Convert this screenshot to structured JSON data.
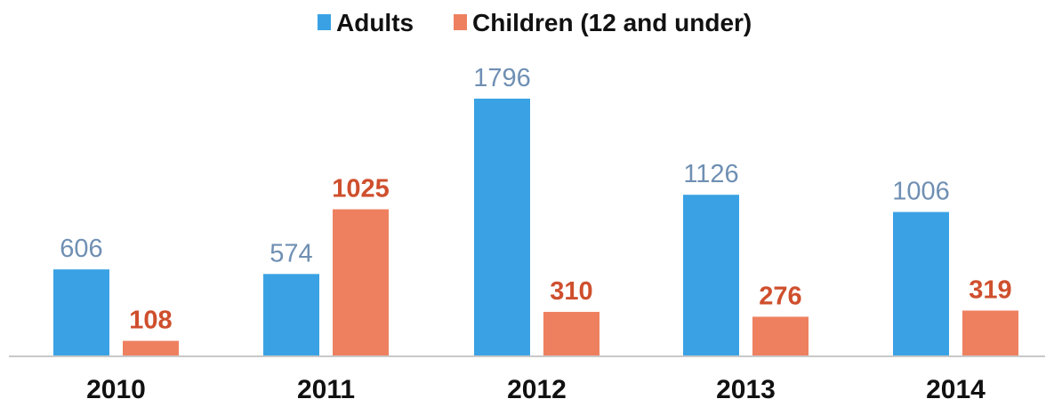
{
  "chart_data": {
    "type": "bar",
    "categories": [
      "2010",
      "2011",
      "2012",
      "2013",
      "2014"
    ],
    "series": [
      {
        "name": "Adults",
        "values": [
          606,
          574,
          1796,
          1126,
          1006
        ],
        "color": "#3aa2e4",
        "label_color": "#6f8fb3"
      },
      {
        "name": "Children (12 and under)",
        "values": [
          108,
          1025,
          310,
          276,
          319
        ],
        "color": "#ee8060",
        "label_color": "#cf4f2d"
      }
    ],
    "ylim": [
      0,
      2000
    ],
    "grid": false,
    "legend": "top-center",
    "axis_color": "#c8c8c8"
  }
}
